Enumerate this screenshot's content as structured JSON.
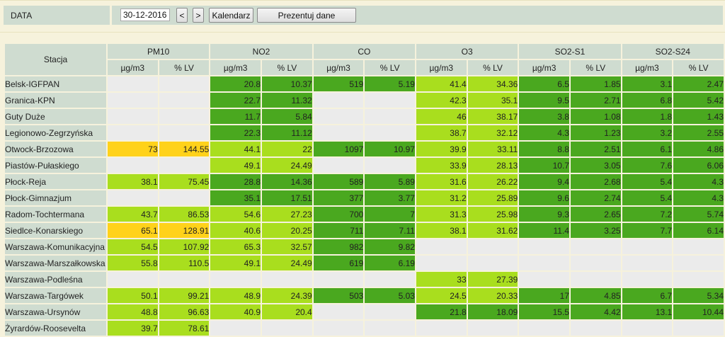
{
  "toolbar": {
    "date_label": "DATA",
    "date_value": "30-12-2016",
    "prev_label": "<",
    "next_label": ">",
    "calendar_label": "Kalendarz",
    "present_label": "Prezentuj dane"
  },
  "table": {
    "station_header": "Stacja",
    "groups": [
      "PM10",
      "NO2",
      "CO",
      "O3",
      "SO2-S1",
      "SO2-S24"
    ],
    "units": [
      "µg/m3",
      "% LV"
    ],
    "colors": {
      "empty": "#ebebeb",
      "dg": "#4aa81f",
      "mg": "#6fc21d",
      "lg": "#a9de1e",
      "yl": "#ffd21a"
    },
    "rows": [
      {
        "station": "Belsk-IGFPAN",
        "cells": [
          {
            "v": "",
            "c": "empty"
          },
          {
            "v": "",
            "c": "empty"
          },
          {
            "v": "20.8",
            "c": "dg"
          },
          {
            "v": "10.37",
            "c": "dg"
          },
          {
            "v": "519",
            "c": "dg"
          },
          {
            "v": "5.19",
            "c": "dg"
          },
          {
            "v": "41.4",
            "c": "lg"
          },
          {
            "v": "34.36",
            "c": "lg"
          },
          {
            "v": "6.5",
            "c": "dg"
          },
          {
            "v": "1.85",
            "c": "dg"
          },
          {
            "v": "3.1",
            "c": "dg"
          },
          {
            "v": "2.47",
            "c": "dg"
          }
        ]
      },
      {
        "station": "Granica-KPN",
        "cells": [
          {
            "v": "",
            "c": "empty"
          },
          {
            "v": "",
            "c": "empty"
          },
          {
            "v": "22.7",
            "c": "dg"
          },
          {
            "v": "11.32",
            "c": "dg"
          },
          {
            "v": "",
            "c": "empty"
          },
          {
            "v": "",
            "c": "empty"
          },
          {
            "v": "42.3",
            "c": "lg"
          },
          {
            "v": "35.1",
            "c": "lg"
          },
          {
            "v": "9.5",
            "c": "dg"
          },
          {
            "v": "2.71",
            "c": "dg"
          },
          {
            "v": "6.8",
            "c": "dg"
          },
          {
            "v": "5.42",
            "c": "dg"
          }
        ]
      },
      {
        "station": "Guty Duże",
        "cells": [
          {
            "v": "",
            "c": "empty"
          },
          {
            "v": "",
            "c": "empty"
          },
          {
            "v": "11.7",
            "c": "dg"
          },
          {
            "v": "5.84",
            "c": "dg"
          },
          {
            "v": "",
            "c": "empty"
          },
          {
            "v": "",
            "c": "empty"
          },
          {
            "v": "46",
            "c": "lg"
          },
          {
            "v": "38.17",
            "c": "lg"
          },
          {
            "v": "3.8",
            "c": "dg"
          },
          {
            "v": "1.08",
            "c": "dg"
          },
          {
            "v": "1.8",
            "c": "dg"
          },
          {
            "v": "1.43",
            "c": "dg"
          }
        ]
      },
      {
        "station": "Legionowo-Zegrzyńska",
        "cells": [
          {
            "v": "",
            "c": "empty"
          },
          {
            "v": "",
            "c": "empty"
          },
          {
            "v": "22.3",
            "c": "dg"
          },
          {
            "v": "11.12",
            "c": "dg"
          },
          {
            "v": "",
            "c": "empty"
          },
          {
            "v": "",
            "c": "empty"
          },
          {
            "v": "38.7",
            "c": "lg"
          },
          {
            "v": "32.12",
            "c": "lg"
          },
          {
            "v": "4.3",
            "c": "dg"
          },
          {
            "v": "1.23",
            "c": "dg"
          },
          {
            "v": "3.2",
            "c": "dg"
          },
          {
            "v": "2.55",
            "c": "dg"
          }
        ]
      },
      {
        "station": "Otwock-Brzozowa",
        "cells": [
          {
            "v": "73",
            "c": "yl"
          },
          {
            "v": "144.55",
            "c": "yl"
          },
          {
            "v": "44.1",
            "c": "lg"
          },
          {
            "v": "22",
            "c": "lg"
          },
          {
            "v": "1097",
            "c": "dg"
          },
          {
            "v": "10.97",
            "c": "dg"
          },
          {
            "v": "39.9",
            "c": "lg"
          },
          {
            "v": "33.11",
            "c": "lg"
          },
          {
            "v": "8.8",
            "c": "dg"
          },
          {
            "v": "2.51",
            "c": "dg"
          },
          {
            "v": "6.1",
            "c": "dg"
          },
          {
            "v": "4.86",
            "c": "dg"
          }
        ]
      },
      {
        "station": "Piastów-Pułaskiego",
        "cells": [
          {
            "v": "",
            "c": "empty"
          },
          {
            "v": "",
            "c": "empty"
          },
          {
            "v": "49.1",
            "c": "lg"
          },
          {
            "v": "24.49",
            "c": "lg"
          },
          {
            "v": "",
            "c": "empty"
          },
          {
            "v": "",
            "c": "empty"
          },
          {
            "v": "33.9",
            "c": "lg"
          },
          {
            "v": "28.13",
            "c": "lg"
          },
          {
            "v": "10.7",
            "c": "dg"
          },
          {
            "v": "3.05",
            "c": "dg"
          },
          {
            "v": "7.6",
            "c": "dg"
          },
          {
            "v": "6.06",
            "c": "dg"
          }
        ]
      },
      {
        "station": "Płock-Reja",
        "cells": [
          {
            "v": "38.1",
            "c": "lg"
          },
          {
            "v": "75.45",
            "c": "lg"
          },
          {
            "v": "28.8",
            "c": "dg"
          },
          {
            "v": "14.36",
            "c": "dg"
          },
          {
            "v": "589",
            "c": "dg"
          },
          {
            "v": "5.89",
            "c": "dg"
          },
          {
            "v": "31.6",
            "c": "lg"
          },
          {
            "v": "26.22",
            "c": "lg"
          },
          {
            "v": "9.4",
            "c": "dg"
          },
          {
            "v": "2.68",
            "c": "dg"
          },
          {
            "v": "5.4",
            "c": "dg"
          },
          {
            "v": "4.3",
            "c": "dg"
          }
        ]
      },
      {
        "station": "Płock-Gimnazjum",
        "cells": [
          {
            "v": "",
            "c": "empty"
          },
          {
            "v": "",
            "c": "empty"
          },
          {
            "v": "35.1",
            "c": "dg"
          },
          {
            "v": "17.51",
            "c": "dg"
          },
          {
            "v": "377",
            "c": "dg"
          },
          {
            "v": "3.77",
            "c": "dg"
          },
          {
            "v": "31.2",
            "c": "lg"
          },
          {
            "v": "25.89",
            "c": "lg"
          },
          {
            "v": "9.6",
            "c": "dg"
          },
          {
            "v": "2.74",
            "c": "dg"
          },
          {
            "v": "5.4",
            "c": "dg"
          },
          {
            "v": "4.3",
            "c": "dg"
          }
        ]
      },
      {
        "station": "Radom-Tochtermana",
        "cells": [
          {
            "v": "43.7",
            "c": "lg"
          },
          {
            "v": "86.53",
            "c": "lg"
          },
          {
            "v": "54.6",
            "c": "lg"
          },
          {
            "v": "27.23",
            "c": "lg"
          },
          {
            "v": "700",
            "c": "dg"
          },
          {
            "v": "7",
            "c": "dg"
          },
          {
            "v": "31.3",
            "c": "lg"
          },
          {
            "v": "25.98",
            "c": "lg"
          },
          {
            "v": "9.3",
            "c": "dg"
          },
          {
            "v": "2.65",
            "c": "dg"
          },
          {
            "v": "7.2",
            "c": "dg"
          },
          {
            "v": "5.74",
            "c": "dg"
          }
        ]
      },
      {
        "station": "Siedlce-Konarskiego",
        "cells": [
          {
            "v": "65.1",
            "c": "yl"
          },
          {
            "v": "128.91",
            "c": "yl"
          },
          {
            "v": "40.6",
            "c": "lg"
          },
          {
            "v": "20.25",
            "c": "lg"
          },
          {
            "v": "711",
            "c": "dg"
          },
          {
            "v": "7.11",
            "c": "dg"
          },
          {
            "v": "38.1",
            "c": "lg"
          },
          {
            "v": "31.62",
            "c": "lg"
          },
          {
            "v": "11.4",
            "c": "dg"
          },
          {
            "v": "3.25",
            "c": "dg"
          },
          {
            "v": "7.7",
            "c": "dg"
          },
          {
            "v": "6.14",
            "c": "dg"
          }
        ]
      },
      {
        "station": "Warszawa-Komunikacyjna",
        "cells": [
          {
            "v": "54.5",
            "c": "lg"
          },
          {
            "v": "107.92",
            "c": "lg"
          },
          {
            "v": "65.3",
            "c": "lg"
          },
          {
            "v": "32.57",
            "c": "lg"
          },
          {
            "v": "982",
            "c": "dg"
          },
          {
            "v": "9.82",
            "c": "dg"
          },
          {
            "v": "",
            "c": "empty"
          },
          {
            "v": "",
            "c": "empty"
          },
          {
            "v": "",
            "c": "empty"
          },
          {
            "v": "",
            "c": "empty"
          },
          {
            "v": "",
            "c": "empty"
          },
          {
            "v": "",
            "c": "empty"
          }
        ]
      },
      {
        "station": "Warszawa-Marszałkowska",
        "cells": [
          {
            "v": "55.8",
            "c": "lg"
          },
          {
            "v": "110.5",
            "c": "lg"
          },
          {
            "v": "49.1",
            "c": "lg"
          },
          {
            "v": "24.49",
            "c": "lg"
          },
          {
            "v": "619",
            "c": "dg"
          },
          {
            "v": "6.19",
            "c": "dg"
          },
          {
            "v": "",
            "c": "empty"
          },
          {
            "v": "",
            "c": "empty"
          },
          {
            "v": "",
            "c": "empty"
          },
          {
            "v": "",
            "c": "empty"
          },
          {
            "v": "",
            "c": "empty"
          },
          {
            "v": "",
            "c": "empty"
          }
        ]
      },
      {
        "station": "Warszawa-Podleśna",
        "cells": [
          {
            "v": "",
            "c": "empty"
          },
          {
            "v": "",
            "c": "empty"
          },
          {
            "v": "",
            "c": "empty"
          },
          {
            "v": "",
            "c": "empty"
          },
          {
            "v": "",
            "c": "empty"
          },
          {
            "v": "",
            "c": "empty"
          },
          {
            "v": "33",
            "c": "lg"
          },
          {
            "v": "27.39",
            "c": "lg"
          },
          {
            "v": "",
            "c": "empty"
          },
          {
            "v": "",
            "c": "empty"
          },
          {
            "v": "",
            "c": "empty"
          },
          {
            "v": "",
            "c": "empty"
          }
        ]
      },
      {
        "station": "Warszawa-Targówek",
        "cells": [
          {
            "v": "50.1",
            "c": "lg"
          },
          {
            "v": "99.21",
            "c": "lg"
          },
          {
            "v": "48.9",
            "c": "lg"
          },
          {
            "v": "24.39",
            "c": "lg"
          },
          {
            "v": "503",
            "c": "dg"
          },
          {
            "v": "5.03",
            "c": "dg"
          },
          {
            "v": "24.5",
            "c": "lg"
          },
          {
            "v": "20.33",
            "c": "lg"
          },
          {
            "v": "17",
            "c": "dg"
          },
          {
            "v": "4.85",
            "c": "dg"
          },
          {
            "v": "6.7",
            "c": "dg"
          },
          {
            "v": "5.34",
            "c": "dg"
          }
        ]
      },
      {
        "station": "Warszawa-Ursynów",
        "cells": [
          {
            "v": "48.8",
            "c": "lg"
          },
          {
            "v": "96.63",
            "c": "lg"
          },
          {
            "v": "40.9",
            "c": "lg"
          },
          {
            "v": "20.4",
            "c": "lg"
          },
          {
            "v": "",
            "c": "empty"
          },
          {
            "v": "",
            "c": "empty"
          },
          {
            "v": "21.8",
            "c": "dg"
          },
          {
            "v": "18.09",
            "c": "dg"
          },
          {
            "v": "15.5",
            "c": "dg"
          },
          {
            "v": "4.42",
            "c": "dg"
          },
          {
            "v": "13.1",
            "c": "dg"
          },
          {
            "v": "10.44",
            "c": "dg"
          }
        ]
      },
      {
        "station": "Żyrardów-Roosevelta",
        "cells": [
          {
            "v": "39.7",
            "c": "lg"
          },
          {
            "v": "78.61",
            "c": "lg"
          },
          {
            "v": "",
            "c": "empty"
          },
          {
            "v": "",
            "c": "empty"
          },
          {
            "v": "",
            "c": "empty"
          },
          {
            "v": "",
            "c": "empty"
          },
          {
            "v": "",
            "c": "empty"
          },
          {
            "v": "",
            "c": "empty"
          },
          {
            "v": "",
            "c": "empty"
          },
          {
            "v": "",
            "c": "empty"
          },
          {
            "v": "",
            "c": "empty"
          },
          {
            "v": "",
            "c": "empty"
          }
        ]
      }
    ]
  }
}
